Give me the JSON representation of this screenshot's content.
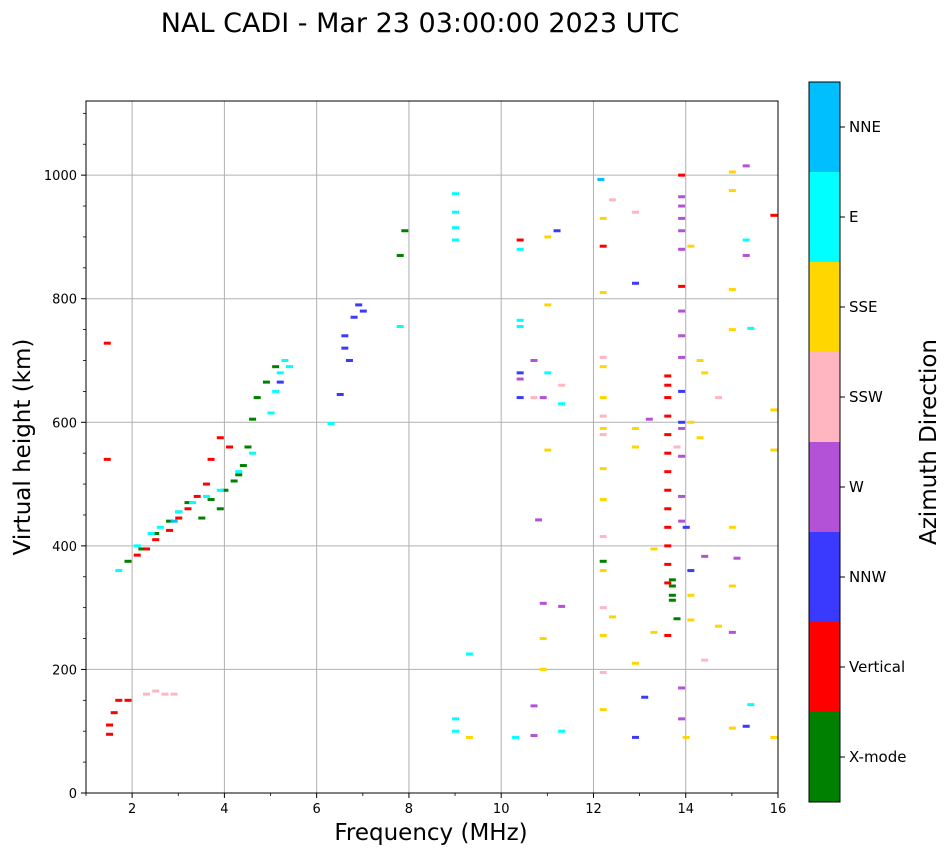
{
  "chart_data": {
    "type": "scatter",
    "title": "NAL CADI - Mar 23 03:00:00 2023 UTC",
    "xlabel": "Frequency (MHz)",
    "ylabel": "Virtual height (km)",
    "xlim": [
      1,
      16
    ],
    "ylim": [
      0,
      1120
    ],
    "xticks": [
      2,
      4,
      6,
      8,
      10,
      12,
      14,
      16
    ],
    "yticks": [
      0,
      200,
      400,
      600,
      800,
      1000
    ],
    "grid": true,
    "colorbar": {
      "title": "Azimuth Direction",
      "categories": [
        {
          "name": "X-mode",
          "color": "#008000"
        },
        {
          "name": "Vertical",
          "color": "#ff0000"
        },
        {
          "name": "NNW",
          "color": "#3a3aff"
        },
        {
          "name": "W",
          "color": "#b352d6"
        },
        {
          "name": "SSW",
          "color": "#ffb6c1"
        },
        {
          "name": "SSE",
          "color": "#ffd700"
        },
        {
          "name": "E",
          "color": "#00ffff"
        },
        {
          "name": "NNE",
          "color": "#00bfff"
        }
      ]
    },
    "series": [
      {
        "name": "X-mode",
        "points": [
          [
            1.9,
            375
          ],
          [
            2.2,
            395
          ],
          [
            2.5,
            420
          ],
          [
            2.8,
            440
          ],
          [
            3.0,
            455
          ],
          [
            3.2,
            470
          ],
          [
            3.5,
            445
          ],
          [
            3.7,
            475
          ],
          [
            3.9,
            460
          ],
          [
            4.0,
            490
          ],
          [
            4.2,
            505
          ],
          [
            4.3,
            515
          ],
          [
            4.4,
            530
          ],
          [
            4.5,
            560
          ],
          [
            4.6,
            605
          ],
          [
            4.7,
            640
          ],
          [
            4.9,
            665
          ],
          [
            5.1,
            690
          ],
          [
            12.2,
            375
          ],
          [
            13.7,
            345
          ],
          [
            13.7,
            335
          ],
          [
            13.7,
            320
          ],
          [
            13.7,
            312
          ],
          [
            13.8,
            282
          ],
          [
            7.9,
            910
          ],
          [
            7.8,
            870
          ]
        ]
      },
      {
        "name": "Vertical",
        "points": [
          [
            1.5,
            95
          ],
          [
            1.5,
            110
          ],
          [
            1.6,
            130
          ],
          [
            1.7,
            150
          ],
          [
            1.9,
            150
          ],
          [
            2.1,
            385
          ],
          [
            2.3,
            395
          ],
          [
            2.5,
            410
          ],
          [
            2.8,
            425
          ],
          [
            3.0,
            445
          ],
          [
            3.2,
            460
          ],
          [
            3.4,
            480
          ],
          [
            3.6,
            500
          ],
          [
            3.7,
            540
          ],
          [
            3.9,
            575
          ],
          [
            4.1,
            560
          ],
          [
            1.45,
            540
          ],
          [
            1.45,
            728
          ],
          [
            13.6,
            675
          ],
          [
            13.6,
            660
          ],
          [
            13.6,
            640
          ],
          [
            13.6,
            610
          ],
          [
            13.6,
            580
          ],
          [
            13.6,
            550
          ],
          [
            13.6,
            520
          ],
          [
            13.6,
            490
          ],
          [
            13.6,
            460
          ],
          [
            13.6,
            430
          ],
          [
            13.6,
            400
          ],
          [
            13.6,
            370
          ],
          [
            13.6,
            340
          ],
          [
            13.6,
            255
          ],
          [
            13.9,
            820
          ],
          [
            13.9,
            1000
          ],
          [
            12.2,
            885
          ],
          [
            15.9,
            935
          ],
          [
            10.4,
            895
          ]
        ]
      },
      {
        "name": "NNW",
        "points": [
          [
            6.6,
            740
          ],
          [
            6.6,
            720
          ],
          [
            6.7,
            700
          ],
          [
            6.8,
            770
          ],
          [
            6.9,
            790
          ],
          [
            7.0,
            780
          ],
          [
            6.5,
            645
          ],
          [
            5.2,
            665
          ],
          [
            13.9,
            650
          ],
          [
            13.9,
            600
          ],
          [
            14.0,
            430
          ],
          [
            14.1,
            360
          ],
          [
            13.1,
            155
          ],
          [
            12.9,
            90
          ],
          [
            15.3,
            108
          ],
          [
            12.9,
            825
          ],
          [
            11.2,
            910
          ],
          [
            10.4,
            640
          ],
          [
            10.4,
            680
          ]
        ]
      },
      {
        "name": "W",
        "points": [
          [
            13.9,
            965
          ],
          [
            13.9,
            950
          ],
          [
            13.9,
            930
          ],
          [
            13.9,
            910
          ],
          [
            13.9,
            880
          ],
          [
            13.9,
            780
          ],
          [
            13.9,
            740
          ],
          [
            13.9,
            705
          ],
          [
            13.9,
            590
          ],
          [
            13.9,
            545
          ],
          [
            13.9,
            480
          ],
          [
            13.9,
            440
          ],
          [
            13.9,
            170
          ],
          [
            13.9,
            120
          ],
          [
            15.3,
            1015
          ],
          [
            15.3,
            870
          ],
          [
            15.1,
            380
          ],
          [
            15.0,
            260
          ],
          [
            10.7,
            93
          ],
          [
            10.7,
            700
          ],
          [
            10.4,
            670
          ],
          [
            10.9,
            640
          ],
          [
            13.2,
            605
          ],
          [
            14.4,
            383
          ],
          [
            11.3,
            302
          ],
          [
            10.9,
            307
          ],
          [
            10.7,
            141
          ],
          [
            10.8,
            442
          ]
        ]
      },
      {
        "name": "SSW",
        "points": [
          [
            2.3,
            160
          ],
          [
            2.5,
            165
          ],
          [
            2.7,
            160
          ],
          [
            2.9,
            160
          ],
          [
            12.2,
            705
          ],
          [
            12.2,
            610
          ],
          [
            12.2,
            580
          ],
          [
            12.2,
            415
          ],
          [
            12.2,
            300
          ],
          [
            12.2,
            195
          ],
          [
            12.4,
            960
          ],
          [
            12.9,
            940
          ],
          [
            11.3,
            660
          ],
          [
            14.4,
            215
          ],
          [
            14.7,
            640
          ],
          [
            10.7,
            640
          ],
          [
            13.8,
            560
          ]
        ]
      },
      {
        "name": "SSE",
        "points": [
          [
            12.2,
            930
          ],
          [
            12.2,
            810
          ],
          [
            12.2,
            690
          ],
          [
            12.2,
            640
          ],
          [
            12.2,
            590
          ],
          [
            12.2,
            525
          ],
          [
            12.2,
            475
          ],
          [
            12.2,
            360
          ],
          [
            12.2,
            255
          ],
          [
            12.2,
            135
          ],
          [
            12.4,
            285
          ],
          [
            12.9,
            590
          ],
          [
            12.9,
            560
          ],
          [
            13.3,
            395
          ],
          [
            13.3,
            260
          ],
          [
            12.9,
            210
          ],
          [
            14.1,
            885
          ],
          [
            14.1,
            600
          ],
          [
            14.3,
            575
          ],
          [
            14.1,
            320
          ],
          [
            14.1,
            280
          ],
          [
            14.3,
            700
          ],
          [
            14.4,
            680
          ],
          [
            15.0,
            1005
          ],
          [
            15.0,
            975
          ],
          [
            15.0,
            815
          ],
          [
            15.0,
            750
          ],
          [
            15.0,
            430
          ],
          [
            15.0,
            335
          ],
          [
            15.0,
            105
          ],
          [
            15.9,
            555
          ],
          [
            15.9,
            620
          ],
          [
            15.9,
            90
          ],
          [
            14.7,
            270
          ],
          [
            11.0,
            900
          ],
          [
            11.0,
            790
          ],
          [
            11.0,
            555
          ],
          [
            9.3,
            90
          ],
          [
            14.0,
            90
          ],
          [
            10.9,
            200
          ],
          [
            10.9,
            250
          ]
        ]
      },
      {
        "name": "E",
        "points": [
          [
            1.7,
            360
          ],
          [
            2.1,
            400
          ],
          [
            2.4,
            420
          ],
          [
            2.6,
            430
          ],
          [
            3.0,
            455
          ],
          [
            3.3,
            470
          ],
          [
            3.6,
            480
          ],
          [
            3.9,
            490
          ],
          [
            4.3,
            520
          ],
          [
            4.6,
            550
          ],
          [
            5.0,
            615
          ],
          [
            5.1,
            650
          ],
          [
            5.2,
            680
          ],
          [
            5.3,
            700
          ],
          [
            5.4,
            690
          ],
          [
            9.0,
            970
          ],
          [
            9.0,
            940
          ],
          [
            9.0,
            915
          ],
          [
            9.0,
            895
          ],
          [
            9.0,
            120
          ],
          [
            9.0,
            100
          ],
          [
            9.3,
            225
          ],
          [
            10.4,
            880
          ],
          [
            10.4,
            765
          ],
          [
            10.4,
            755
          ],
          [
            11.0,
            680
          ],
          [
            11.3,
            630
          ],
          [
            15.3,
            895
          ],
          [
            15.4,
            752
          ],
          [
            15.4,
            143
          ],
          [
            11.3,
            100
          ],
          [
            10.3,
            90
          ],
          [
            6.3,
            598
          ],
          [
            7.8,
            755
          ]
        ]
      },
      {
        "name": "NNE",
        "points": [
          [
            12.15,
            993
          ],
          [
            2.9,
            440
          ]
        ]
      }
    ]
  }
}
